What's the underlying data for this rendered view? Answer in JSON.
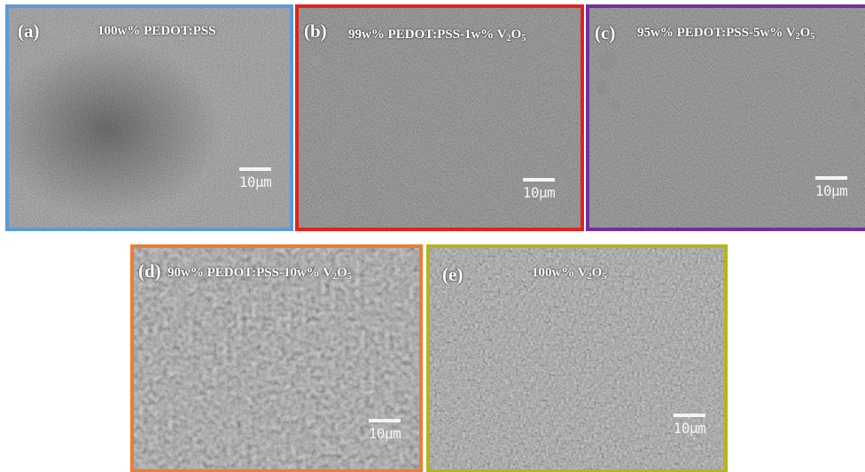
{
  "panels": [
    {
      "key": "a",
      "tag": "(a)",
      "title": "100w% PEDOT:PSS",
      "title_sub": null,
      "title_tail": "",
      "border": "#5b9bd5",
      "scale": "10µm"
    },
    {
      "key": "b",
      "tag": "(b)",
      "title": "99w% PEDOT:PSS-1w% V",
      "title_sub": [
        "2",
        "O",
        "5"
      ],
      "title_tail": "",
      "border": "#e3231b",
      "scale": "10µm"
    },
    {
      "key": "c",
      "tag": "(c)",
      "title": "95w% PEDOT:PSS-5w% V",
      "title_sub": [
        "2",
        "O",
        "5"
      ],
      "title_tail": "",
      "border": "#7030a0",
      "scale": "10µm"
    },
    {
      "key": "d",
      "tag": "(d)",
      "title": "90w% PEDOT:PSS-10w% V",
      "title_sub": [
        "2",
        "O",
        "5"
      ],
      "title_tail": "",
      "border": "#ed7d31",
      "scale": "10µm"
    },
    {
      "key": "e",
      "tag": "(e)",
      "title": "100w% V",
      "title_sub": [
        "2",
        "O",
        "5"
      ],
      "title_tail": "",
      "border": "#b5b51a",
      "scale": "10µm"
    }
  ]
}
